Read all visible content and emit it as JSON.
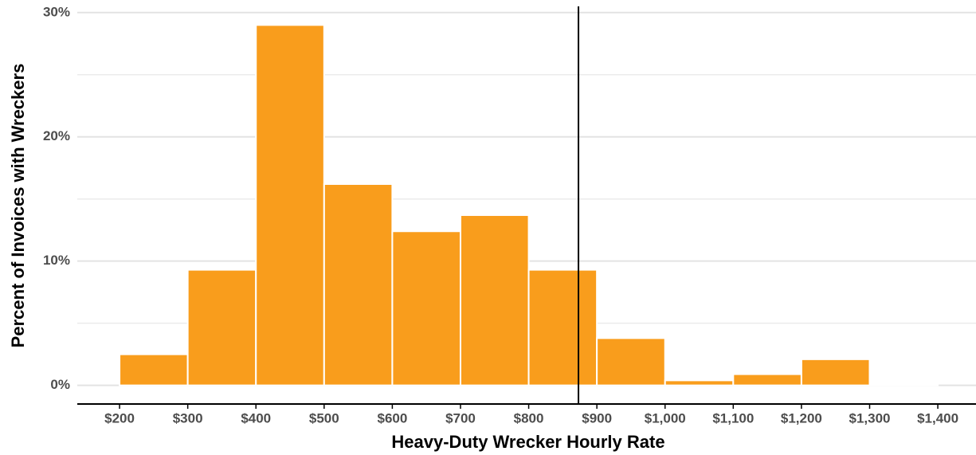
{
  "chart_data": {
    "type": "histogram",
    "xlabel": "Heavy-Duty Wrecker Hourly Rate",
    "ylabel": "Percent of Invoices with Wreckers",
    "bins": [
      200,
      300,
      400,
      500,
      600,
      700,
      800,
      900,
      1000,
      1100,
      1200,
      1300,
      1400
    ],
    "values": [
      2.5,
      9.3,
      29.0,
      16.2,
      12.4,
      13.7,
      9.3,
      3.8,
      0.4,
      0.9,
      2.1,
      0.1
    ],
    "color": "#f99d1c",
    "xlim": [
      138,
      1456
    ],
    "ylim": [
      -1.5,
      30.5
    ],
    "xticks": [
      {
        "value": 200,
        "label": "$200"
      },
      {
        "value": 300,
        "label": "$300"
      },
      {
        "value": 400,
        "label": "$400"
      },
      {
        "value": 500,
        "label": "$500"
      },
      {
        "value": 600,
        "label": "$600"
      },
      {
        "value": 700,
        "label": "$700"
      },
      {
        "value": 800,
        "label": "$800"
      },
      {
        "value": 900,
        "label": "$900"
      },
      {
        "value": 1000,
        "label": "$1,000"
      },
      {
        "value": 1100,
        "label": "$1,100"
      },
      {
        "value": 1200,
        "label": "$1,200"
      },
      {
        "value": 1300,
        "label": "$1,300"
      },
      {
        "value": 1400,
        "label": "$1,400"
      }
    ],
    "yticks": [
      {
        "value": 0,
        "label": "0%"
      },
      {
        "value": 10,
        "label": "10%"
      },
      {
        "value": 20,
        "label": "20%"
      },
      {
        "value": 30,
        "label": "30%"
      }
    ],
    "minor_yticks": [
      5,
      15,
      25
    ],
    "grid": true,
    "vline": 873
  }
}
